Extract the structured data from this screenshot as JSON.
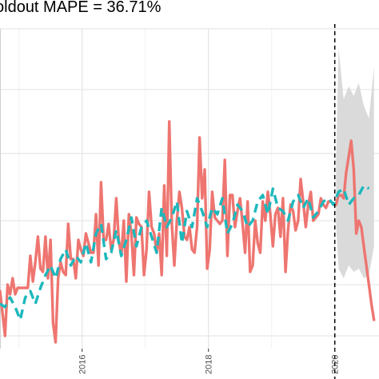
{
  "chart_data": {
    "type": "line",
    "title": "oldout MAPE = 36.71%",
    "x_tick_labels": [
      "2016",
      "2018",
      "2020"
    ],
    "x_ticks": [
      2016,
      2018,
      2020
    ],
    "xlim": [
      2014.7,
      2020.7
    ],
    "ylim": [
      0,
      100
    ],
    "y_gridlines": [
      4,
      20,
      40,
      61,
      81,
      100
    ],
    "holdout_start": 2020.0,
    "grid": "on",
    "colors": {
      "actual": "#ee7570",
      "fitted": "#1cb8bc",
      "interval": "#dadada",
      "holdout_line": "#000000",
      "grid": "#e6e6e6"
    },
    "series": [
      {
        "key": "actual",
        "style": "solid",
        "x": [
          2014.7,
          2014.78,
          2014.82,
          2014.86,
          2014.9,
          2014.94,
          2014.98,
          2015.02,
          2015.06,
          2015.1,
          2015.14,
          2015.18,
          2015.22,
          2015.26,
          2015.3,
          2015.34,
          2015.38,
          2015.42,
          2015.46,
          2015.5,
          2015.54,
          2015.58,
          2015.62,
          2015.66,
          2015.7,
          2015.74,
          2015.78,
          2015.82,
          2015.86,
          2015.9,
          2015.94,
          2015.98,
          2016.02,
          2016.06,
          2016.1,
          2016.14,
          2016.18,
          2016.22,
          2016.26,
          2016.3,
          2016.34,
          2016.38,
          2016.42,
          2016.46,
          2016.5,
          2016.54,
          2016.58,
          2016.62,
          2016.66,
          2016.7,
          2016.74,
          2016.78,
          2016.82,
          2016.86,
          2016.9,
          2016.94,
          2016.98,
          2017.02,
          2017.06,
          2017.1,
          2017.14,
          2017.18,
          2017.22,
          2017.26,
          2017.3,
          2017.34,
          2017.38,
          2017.42,
          2017.46,
          2017.5,
          2017.54,
          2017.58,
          2017.62,
          2017.66,
          2017.7,
          2017.74,
          2017.78,
          2017.82,
          2017.86,
          2017.9,
          2017.94,
          2017.98,
          2018.02,
          2018.06,
          2018.1,
          2018.14,
          2018.18,
          2018.22,
          2018.26,
          2018.3,
          2018.34,
          2018.38,
          2018.42,
          2018.46,
          2018.5,
          2018.54,
          2018.58,
          2018.62,
          2018.66,
          2018.7,
          2018.74,
          2018.78,
          2018.82,
          2018.86,
          2018.9,
          2018.94,
          2018.98,
          2019.02,
          2019.06,
          2019.1,
          2019.14,
          2019.18,
          2019.22,
          2019.26,
          2019.3,
          2019.34,
          2019.38,
          2019.42,
          2019.46,
          2019.5,
          2019.54,
          2019.58,
          2019.62,
          2019.66,
          2019.7,
          2019.74,
          2019.78,
          2019.82,
          2019.86,
          2019.9,
          2019.94,
          2019.98,
          2020.02,
          2020.06,
          2020.1,
          2020.14,
          2020.18,
          2020.22,
          2020.26,
          2020.3,
          2020.34,
          2020.38,
          2020.42,
          2020.46,
          2020.5,
          2020.54,
          2020.58,
          2020.62
        ],
        "values": [
          18,
          4,
          20,
          17,
          22,
          17,
          19,
          19,
          19,
          19,
          19,
          29,
          21,
          27,
          35,
          25,
          24,
          35,
          22,
          34,
          8,
          2,
          22,
          27,
          24,
          23,
          39,
          28,
          28,
          22,
          34,
          31,
          29,
          36,
          33,
          30,
          30,
          42,
          26,
          52,
          34,
          34,
          39,
          31,
          34,
          47,
          34,
          29,
          40,
          21,
          42,
          36,
          23,
          41,
          39,
          38,
          23,
          31,
          49,
          38,
          36,
          30,
          36,
          23,
          51,
          29,
          71,
          39,
          26,
          40,
          49,
          44,
          35,
          34,
          38,
          31,
          30,
          38,
          66,
          47,
          56,
          25,
          31,
          49,
          41,
          40,
          39,
          40,
          59,
          29,
          48,
          48,
          38,
          43,
          47,
          39,
          30,
          46,
          24,
          26,
          40,
          33,
          30,
          46,
          40,
          49,
          42,
          32,
          42,
          44,
          35,
          47,
          24,
          37,
          45,
          43,
          37,
          40,
          53,
          46,
          38,
          45,
          49,
          40,
          41,
          42,
          47,
          45,
          44,
          46,
          46,
          45,
          45,
          48,
          48,
          47,
          55,
          60,
          65,
          56,
          36,
          40,
          38,
          32,
          26,
          20,
          14,
          9
        ]
      },
      {
        "key": "fitted",
        "style": "dashed",
        "x": [
          2014.7,
          2014.78,
          2014.86,
          2014.94,
          2015.02,
          2015.1,
          2015.18,
          2015.26,
          2015.34,
          2015.42,
          2015.5,
          2015.58,
          2015.66,
          2015.74,
          2015.82,
          2015.9,
          2015.98,
          2016.06,
          2016.14,
          2016.22,
          2016.3,
          2016.38,
          2016.46,
          2016.54,
          2016.62,
          2016.7,
          2016.78,
          2016.86,
          2016.94,
          2017.02,
          2017.1,
          2017.18,
          2017.26,
          2017.34,
          2017.42,
          2017.5,
          2017.58,
          2017.66,
          2017.74,
          2017.82,
          2017.9,
          2017.98,
          2018.06,
          2018.14,
          2018.22,
          2018.3,
          2018.38,
          2018.46,
          2018.54,
          2018.62,
          2018.7,
          2018.78,
          2018.86,
          2018.94,
          2019.02,
          2019.1,
          2019.18,
          2019.26,
          2019.34,
          2019.42,
          2019.5,
          2019.58,
          2019.66,
          2019.74,
          2019.82,
          2019.9,
          2019.98,
          2020.06,
          2020.14,
          2020.22,
          2020.3,
          2020.38,
          2020.46,
          2020.54
        ],
        "values": [
          14,
          13,
          16,
          13,
          9,
          16,
          18,
          14,
          19,
          23,
          26,
          22,
          28,
          31,
          26,
          29,
          27,
          33,
          27,
          36,
          39,
          28,
          30,
          37,
          29,
          34,
          41,
          32,
          38,
          40,
          35,
          30,
          44,
          38,
          41,
          46,
          33,
          43,
          38,
          47,
          43,
          38,
          44,
          42,
          47,
          36,
          39,
          45,
          43,
          38,
          40,
          46,
          48,
          42,
          50,
          44,
          43,
          40,
          46,
          48,
          44,
          47,
          41,
          43,
          46,
          47,
          45,
          49,
          50,
          45,
          47,
          48,
          51,
          50
        ]
      },
      {
        "key": "interval",
        "style": "band",
        "x": [
          2020.02,
          2020.06,
          2020.14,
          2020.22,
          2020.3,
          2020.38,
          2020.46,
          2020.54,
          2020.62
        ],
        "upper": [
          58,
          94,
          78,
          82,
          79,
          83,
          76,
          72,
          88
        ],
        "lower": [
          39,
          25,
          22,
          26,
          24,
          25,
          22,
          23,
          32
        ]
      }
    ]
  }
}
